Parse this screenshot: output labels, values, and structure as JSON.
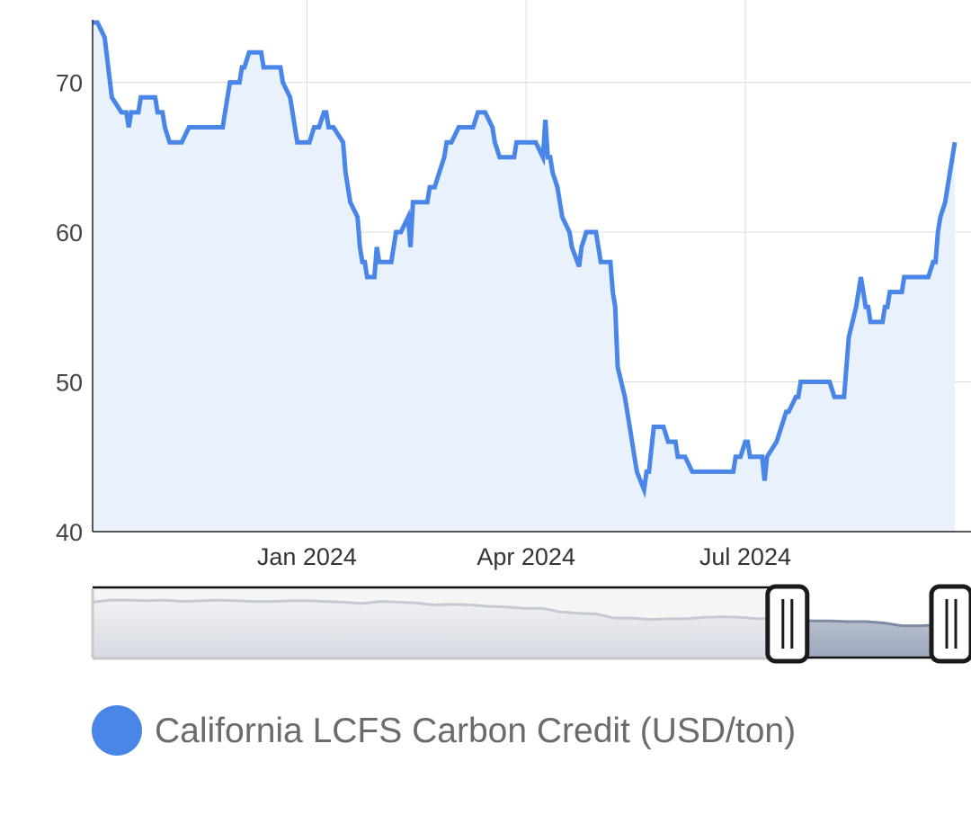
{
  "chart_data": {
    "type": "area",
    "title": "",
    "xlabel": "",
    "ylabel": "",
    "ylim": [
      40,
      75.5
    ],
    "xlim": [
      "2023-10-04",
      "2024-09-26"
    ],
    "grid": true,
    "legend_placement": "bottom-left",
    "y_ticks": [
      "40",
      "50",
      "60",
      "70"
    ],
    "y_tick_values": [
      40,
      50,
      60,
      70
    ],
    "x_ticks": [
      {
        "label": "Jan 2024",
        "date": "2024-01-01"
      },
      {
        "label": "Apr 2024",
        "date": "2024-04-01"
      },
      {
        "label": "Jul 2024",
        "date": "2024-07-01"
      }
    ],
    "colors": {
      "line": "#4a86e8",
      "fill": "#e9f1fc",
      "grid": "#dcdcdc",
      "axis": "#222222"
    },
    "series": [
      {
        "name": "California LCFS Carbon Credit (USD/ton)",
        "points": [
          [
            "2023-10-04",
            74
          ],
          [
            "2023-10-06",
            74
          ],
          [
            "2023-10-09",
            73
          ],
          [
            "2023-10-12",
            69
          ],
          [
            "2023-10-16",
            68
          ],
          [
            "2023-10-18",
            68
          ],
          [
            "2023-10-19",
            67
          ],
          [
            "2023-10-20",
            68
          ],
          [
            "2023-10-23",
            68
          ],
          [
            "2023-10-24",
            69
          ],
          [
            "2023-10-30",
            69
          ],
          [
            "2023-10-31",
            68
          ],
          [
            "2023-11-02",
            68
          ],
          [
            "2023-11-03",
            67
          ],
          [
            "2023-11-05",
            66
          ],
          [
            "2023-11-10",
            66
          ],
          [
            "2023-11-13",
            67
          ],
          [
            "2023-11-27",
            67
          ],
          [
            "2023-11-28",
            68
          ],
          [
            "2023-11-30",
            70
          ],
          [
            "2023-12-04",
            70
          ],
          [
            "2023-12-05",
            71
          ],
          [
            "2023-12-06",
            71
          ],
          [
            "2023-12-08",
            72
          ],
          [
            "2023-12-13",
            72
          ],
          [
            "2023-12-14",
            71
          ],
          [
            "2023-12-21",
            71
          ],
          [
            "2023-12-22",
            70
          ],
          [
            "2023-12-25",
            69
          ],
          [
            "2023-12-27",
            67
          ],
          [
            "2023-12-28",
            66
          ],
          [
            "2024-01-02",
            66
          ],
          [
            "2024-01-04",
            67
          ],
          [
            "2024-01-06",
            67
          ],
          [
            "2024-01-08",
            68
          ],
          [
            "2024-01-09",
            68
          ],
          [
            "2024-01-10",
            67
          ],
          [
            "2024-01-12",
            67
          ],
          [
            "2024-01-16",
            66
          ],
          [
            "2024-01-17",
            64
          ],
          [
            "2024-01-19",
            62
          ],
          [
            "2024-01-22",
            61
          ],
          [
            "2024-01-23",
            59
          ],
          [
            "2024-01-24",
            58
          ],
          [
            "2024-01-25",
            58
          ],
          [
            "2024-01-26",
            57
          ],
          [
            "2024-01-29",
            57
          ],
          [
            "2024-01-30",
            59
          ],
          [
            "2024-01-31",
            58
          ],
          [
            "2024-02-05",
            58
          ],
          [
            "2024-02-07",
            60
          ],
          [
            "2024-02-09",
            60
          ],
          [
            "2024-02-12",
            61
          ],
          [
            "2024-02-13",
            59
          ],
          [
            "2024-02-14",
            62
          ],
          [
            "2024-02-20",
            62
          ],
          [
            "2024-02-21",
            63
          ],
          [
            "2024-02-23",
            63
          ],
          [
            "2024-02-25",
            64
          ],
          [
            "2024-02-27",
            65
          ],
          [
            "2024-02-28",
            66
          ],
          [
            "2024-03-01",
            66
          ],
          [
            "2024-03-04",
            67
          ],
          [
            "2024-03-10",
            67
          ],
          [
            "2024-03-12",
            68
          ],
          [
            "2024-03-15",
            68
          ],
          [
            "2024-03-18",
            67
          ],
          [
            "2024-03-19",
            66
          ],
          [
            "2024-03-21",
            65
          ],
          [
            "2024-03-27",
            65
          ],
          [
            "2024-03-28",
            66
          ],
          [
            "2024-04-05",
            66
          ],
          [
            "2024-04-08",
            65
          ],
          [
            "2024-04-09",
            67.5
          ],
          [
            "2024-04-10",
            65
          ],
          [
            "2024-04-11",
            65
          ],
          [
            "2024-04-12",
            64
          ],
          [
            "2024-04-14",
            63
          ],
          [
            "2024-04-16",
            61
          ],
          [
            "2024-04-19",
            60
          ],
          [
            "2024-04-20",
            59
          ],
          [
            "2024-04-23",
            57.7
          ],
          [
            "2024-04-24",
            59
          ],
          [
            "2024-04-26",
            60
          ],
          [
            "2024-04-30",
            60
          ],
          [
            "2024-05-02",
            58
          ],
          [
            "2024-05-06",
            58
          ],
          [
            "2024-05-07",
            56
          ],
          [
            "2024-05-08",
            55
          ],
          [
            "2024-05-09",
            51
          ],
          [
            "2024-05-12",
            49
          ],
          [
            "2024-05-14",
            47
          ],
          [
            "2024-05-16",
            45
          ],
          [
            "2024-05-17",
            44
          ],
          [
            "2024-05-20",
            42.8
          ],
          [
            "2024-05-21",
            44
          ],
          [
            "2024-05-22",
            44
          ],
          [
            "2024-05-24",
            47
          ],
          [
            "2024-05-28",
            47
          ],
          [
            "2024-05-30",
            46
          ],
          [
            "2024-06-02",
            46
          ],
          [
            "2024-06-03",
            45
          ],
          [
            "2024-06-06",
            45
          ],
          [
            "2024-06-09",
            44
          ],
          [
            "2024-06-26",
            44
          ],
          [
            "2024-06-27",
            45
          ],
          [
            "2024-06-29",
            45
          ],
          [
            "2024-07-01",
            46
          ],
          [
            "2024-07-02",
            46
          ],
          [
            "2024-07-03",
            45
          ],
          [
            "2024-07-08",
            45
          ],
          [
            "2024-07-09",
            43.4
          ],
          [
            "2024-07-10",
            45
          ],
          [
            "2024-07-14",
            46
          ],
          [
            "2024-07-16",
            47
          ],
          [
            "2024-07-18",
            48
          ],
          [
            "2024-07-19",
            48
          ],
          [
            "2024-07-22",
            49
          ],
          [
            "2024-07-23",
            49
          ],
          [
            "2024-07-24",
            50
          ],
          [
            "2024-08-05",
            50
          ],
          [
            "2024-08-07",
            49
          ],
          [
            "2024-08-11",
            49
          ],
          [
            "2024-08-13",
            53
          ],
          [
            "2024-08-16",
            55
          ],
          [
            "2024-08-18",
            57
          ],
          [
            "2024-08-20",
            55
          ],
          [
            "2024-08-21",
            55
          ],
          [
            "2024-08-22",
            54
          ],
          [
            "2024-08-27",
            54
          ],
          [
            "2024-08-28",
            55
          ],
          [
            "2024-08-29",
            55
          ],
          [
            "2024-08-30",
            56
          ],
          [
            "2024-09-04",
            56
          ],
          [
            "2024-09-05",
            57
          ],
          [
            "2024-09-15",
            57
          ],
          [
            "2024-09-17",
            58
          ],
          [
            "2024-09-18",
            58
          ],
          [
            "2024-09-19",
            60
          ],
          [
            "2024-09-20",
            61
          ],
          [
            "2024-09-22",
            62
          ],
          [
            "2024-09-24",
            64
          ],
          [
            "2024-09-26",
            66
          ]
        ]
      }
    ]
  },
  "navigator": {
    "levels": [
      0.8,
      0.83,
      0.83,
      0.82,
      0.83,
      0.81,
      0.82,
      0.83,
      0.82,
      0.81,
      0.81,
      0.82,
      0.82,
      0.81,
      0.8,
      0.78,
      0.81,
      0.8,
      0.79,
      0.76,
      0.77,
      0.76,
      0.74,
      0.73,
      0.71,
      0.71,
      0.66,
      0.64,
      0.63,
      0.57,
      0.57,
      0.55,
      0.56,
      0.56,
      0.58,
      0.59,
      0.58,
      0.56,
      0.57,
      0.55,
      0.53,
      0.53,
      0.52,
      0.52,
      0.5,
      0.46,
      0.46,
      0.47,
      0.49
    ],
    "selection_start": 0.805,
    "selection_end": 1.0,
    "colors": {
      "outside_bg": "#f5f5f5",
      "outside_line": "#c4c9d4",
      "inside_line": "#7d8aa3",
      "inside_fill": "#aab3c6"
    }
  },
  "legend": {
    "label": "California LCFS Carbon Credit (USD/ton)",
    "color": "#4a86e8"
  }
}
